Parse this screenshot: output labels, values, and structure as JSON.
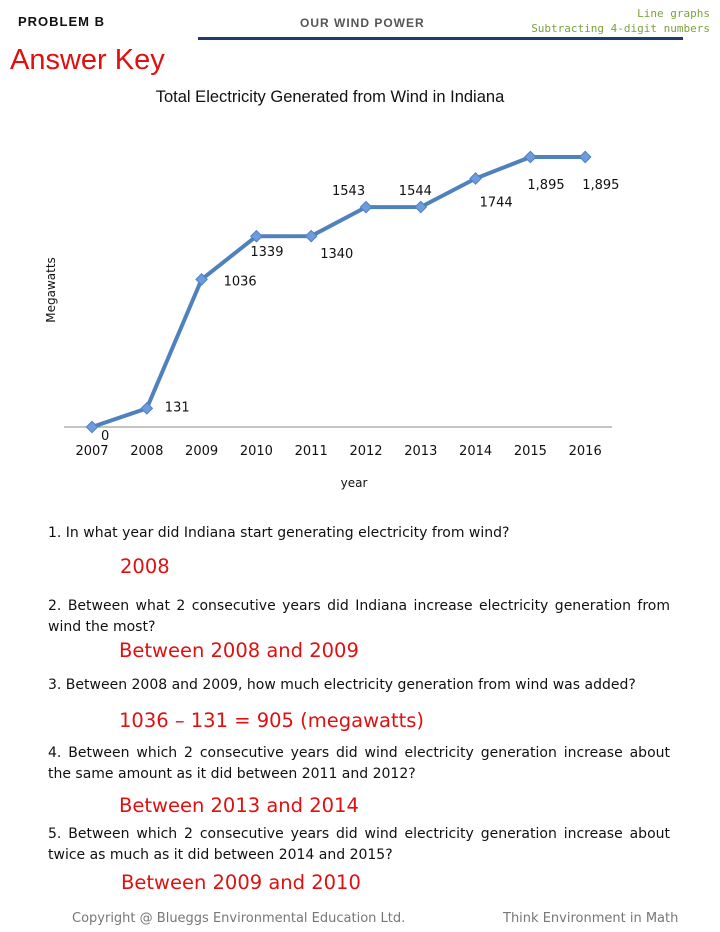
{
  "header": {
    "problem": "PROBLEM B",
    "section": "OUR WIND POWER",
    "tags": [
      "Line graphs",
      "Subtracting 4-digit numbers"
    ]
  },
  "answer_key": "Answer Key",
  "chart_data": {
    "type": "line",
    "title": "Total Electricity Generated from Wind in Indiana",
    "xlabel": "year",
    "ylabel": "Megawatts",
    "categories": [
      "2007",
      "2008",
      "2009",
      "2010",
      "2011",
      "2012",
      "2013",
      "2014",
      "2015",
      "2016"
    ],
    "values": [
      0,
      131,
      1036,
      1339,
      1340,
      1543,
      1544,
      1744,
      1895,
      1895
    ],
    "data_labels": [
      "0",
      "131",
      "1036",
      "1339",
      "1340",
      "1543",
      "1544",
      "1744",
      "1,895",
      "1,895"
    ],
    "ylim": [
      0,
      1895
    ],
    "grid": false,
    "color": "#4f81bd"
  },
  "questions": [
    {
      "q": "1. In what year did Indiana start generating electricity from wind?",
      "a": "2008"
    },
    {
      "q": "2. Between what 2 consecutive years did Indiana increase electricity generation from wind the most?",
      "a": "Between 2008 and 2009"
    },
    {
      "q": "3. Between 2008 and 2009, how much electricity generation from wind was added?",
      "a": "1036 – 131 = 905 (megawatts)"
    },
    {
      "q": "4. Between which 2 consecutive years did wind electricity generation increase about the same amount as it did between 2011 and 2012?",
      "a": "Between 2013 and 2014"
    },
    {
      "q": "5. Between which 2 consecutive years did wind electricity generation increase about twice as much as it did between 2014 and 2015?",
      "a": "Between 2009 and 2010"
    }
  ],
  "footer": {
    "left": "Copyright @ Blueggs Environmental Education Ltd.",
    "right": "Think Environment in Math"
  }
}
